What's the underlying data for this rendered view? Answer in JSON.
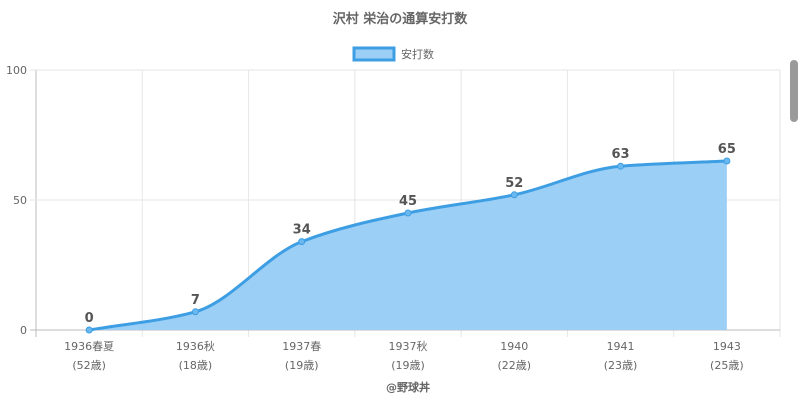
{
  "chart_data": {
    "type": "area",
    "title": "沢村 栄治の通算安打数",
    "legend": {
      "placement": "top",
      "entries": [
        "安打数"
      ]
    },
    "categories": [
      [
        "1936春夏",
        "(52歳)"
      ],
      [
        "1936秋",
        "(18歳)"
      ],
      [
        "1937春",
        "(19歳)"
      ],
      [
        "1937秋",
        "(19歳)"
      ],
      [
        "1940",
        "(22歳)"
      ],
      [
        "1941",
        "(23歳)"
      ],
      [
        "1943",
        "(25歳)"
      ]
    ],
    "series": [
      {
        "name": "安打数",
        "values": [
          0,
          7,
          34,
          45,
          52,
          63,
          65
        ]
      }
    ],
    "y_ticks": [
      "0",
      "50",
      "100"
    ],
    "ylim": [
      0,
      100
    ],
    "grid": true,
    "line_color": "#3d9ee4",
    "fill_color": "#9ccff5",
    "xlabel": "@野球丼"
  }
}
